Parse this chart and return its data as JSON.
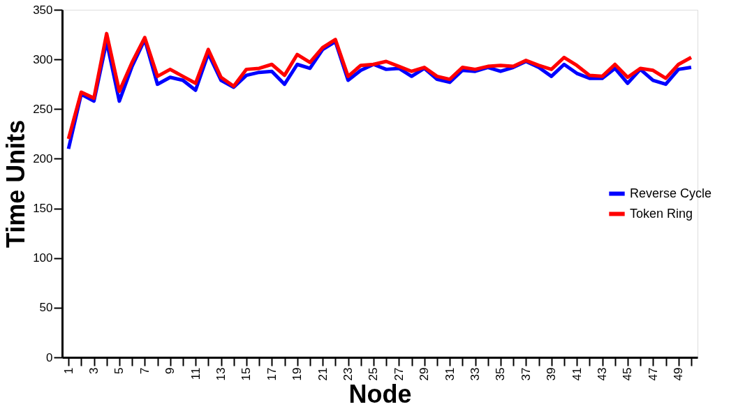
{
  "chart_data": {
    "type": "line",
    "xlabel": "Node",
    "ylabel": "Time Units",
    "categories": [
      "1",
      null,
      "3",
      null,
      "5",
      null,
      "7",
      null,
      "9",
      null,
      "11",
      null,
      "13",
      null,
      "15",
      null,
      "17",
      null,
      "19",
      null,
      "21",
      null,
      "23",
      null,
      "25",
      null,
      "27",
      null,
      "29",
      null,
      "31",
      null,
      "33",
      null,
      "35",
      null,
      "37",
      null,
      "39",
      null,
      "41",
      null,
      "43",
      null,
      "45",
      null,
      "47",
      null,
      "49",
      null
    ],
    "series": [
      {
        "name": "Reverse Cycle",
        "color": "#0000ff",
        "values": [
          210,
          265,
          258,
          318,
          258,
          293,
          320,
          275,
          282,
          279,
          269,
          306,
          279,
          272,
          284,
          287,
          288,
          275,
          295,
          291,
          310,
          318,
          279,
          289,
          295,
          290,
          291,
          283,
          291,
          280,
          277,
          289,
          288,
          292,
          288,
          292,
          298,
          292,
          283,
          295,
          286,
          281,
          281,
          291,
          276,
          290,
          279,
          275,
          290,
          292
        ]
      },
      {
        "name": "Token Ring",
        "color": "#ff0000",
        "values": [
          220,
          267,
          261,
          326,
          268,
          297,
          322,
          283,
          290,
          283,
          276,
          310,
          282,
          273,
          290,
          291,
          295,
          284,
          305,
          297,
          312,
          320,
          283,
          294,
          295,
          298,
          293,
          288,
          292,
          283,
          280,
          292,
          290,
          293,
          294,
          293,
          299,
          294,
          290,
          302,
          294,
          284,
          283,
          295,
          282,
          291,
          289,
          281,
          295,
          302
        ]
      }
    ],
    "ylim": [
      0,
      350
    ],
    "yticks": [
      0,
      50,
      100,
      150,
      200,
      250,
      300,
      350
    ],
    "grid": false,
    "legend": "right",
    "marker": "none",
    "line_style": "solid"
  }
}
